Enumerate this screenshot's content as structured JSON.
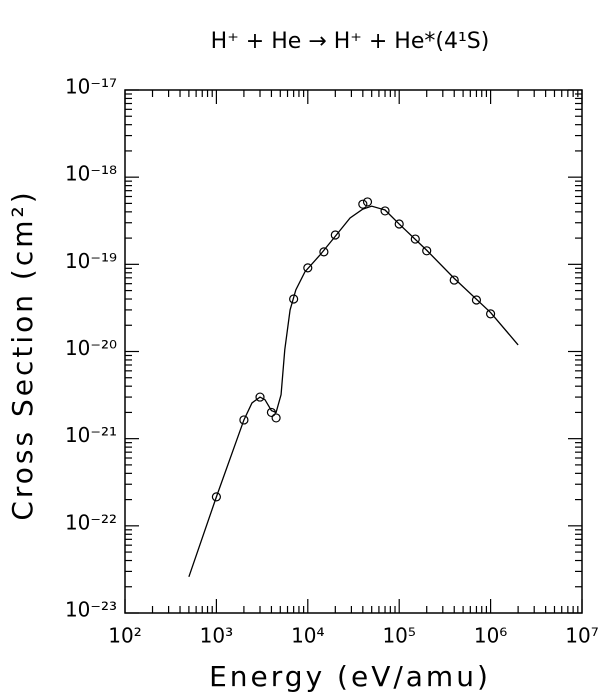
{
  "chart_data": {
    "type": "scatter",
    "title": "H⁺ + He → H⁺ + He*(4¹S)",
    "xlabel": "Energy (eV/amu)",
    "ylabel": "Cross Section (cm²)",
    "xlog": true,
    "ylog": true,
    "xlim": [
      100,
      10000000
    ],
    "ylim": [
      1e-23,
      1e-17
    ],
    "xticks": [
      {
        "value": 100,
        "label": "10²"
      },
      {
        "value": 1000,
        "label": "10³"
      },
      {
        "value": 10000,
        "label": "10⁴"
      },
      {
        "value": 100000,
        "label": "10⁵"
      },
      {
        "value": 1000000,
        "label": "10⁶"
      },
      {
        "value": 10000000,
        "label": "10⁷"
      }
    ],
    "yticks": [
      {
        "value": 1e-23,
        "label": "10⁻²³"
      },
      {
        "value": 1e-22,
        "label": "10⁻²²"
      },
      {
        "value": 1e-21,
        "label": "10⁻²¹"
      },
      {
        "value": 1e-20,
        "label": "10⁻²⁰"
      },
      {
        "value": 1e-19,
        "label": "10⁻¹⁹"
      },
      {
        "value": 1e-18,
        "label": "10⁻¹⁸"
      },
      {
        "value": 1e-17,
        "label": "10⁻¹⁷"
      }
    ],
    "series": [
      {
        "mode": "markers",
        "color": "#000000",
        "x": [
          1000,
          2000,
          3000,
          4000,
          4500,
          7000,
          10000,
          15000,
          20000,
          40000,
          45000,
          70000,
          100000,
          150000,
          200000,
          400000,
          700000,
          1000000
        ],
        "values": [
          2.15e-22,
          1.64e-21,
          3e-21,
          2e-21,
          1.73e-21,
          4e-20,
          9.1e-20,
          1.39e-19,
          2.17e-19,
          4.9e-19,
          5.2e-19,
          4.1e-19,
          2.9e-19,
          1.95e-19,
          1.43e-19,
          6.6e-20,
          3.9e-20,
          2.7e-20
        ]
      },
      {
        "mode": "line",
        "color": "#000000",
        "x": [
          500,
          1000,
          2000,
          2450,
          3000,
          3400,
          4000,
          4500,
          5100,
          5600,
          6400,
          7400,
          9300,
          13600,
          20000,
          29000,
          40000,
          50000,
          70000,
          100000,
          200000,
          400000,
          1000000,
          2000000
        ],
        "values": [
          2.6e-23,
          2.15e-22,
          1.64e-21,
          2.57e-21,
          3e-21,
          2.8e-21,
          2.1e-21,
          2e-21,
          3.2e-21,
          1.05e-20,
          3e-20,
          5.1e-20,
          8.2e-20,
          1.28e-19,
          2.1e-19,
          3.4e-19,
          4.3e-19,
          4.65e-19,
          4.2e-19,
          2.9e-19,
          1.45e-19,
          6.9e-20,
          2.8e-20,
          1.19e-20
        ]
      }
    ]
  }
}
